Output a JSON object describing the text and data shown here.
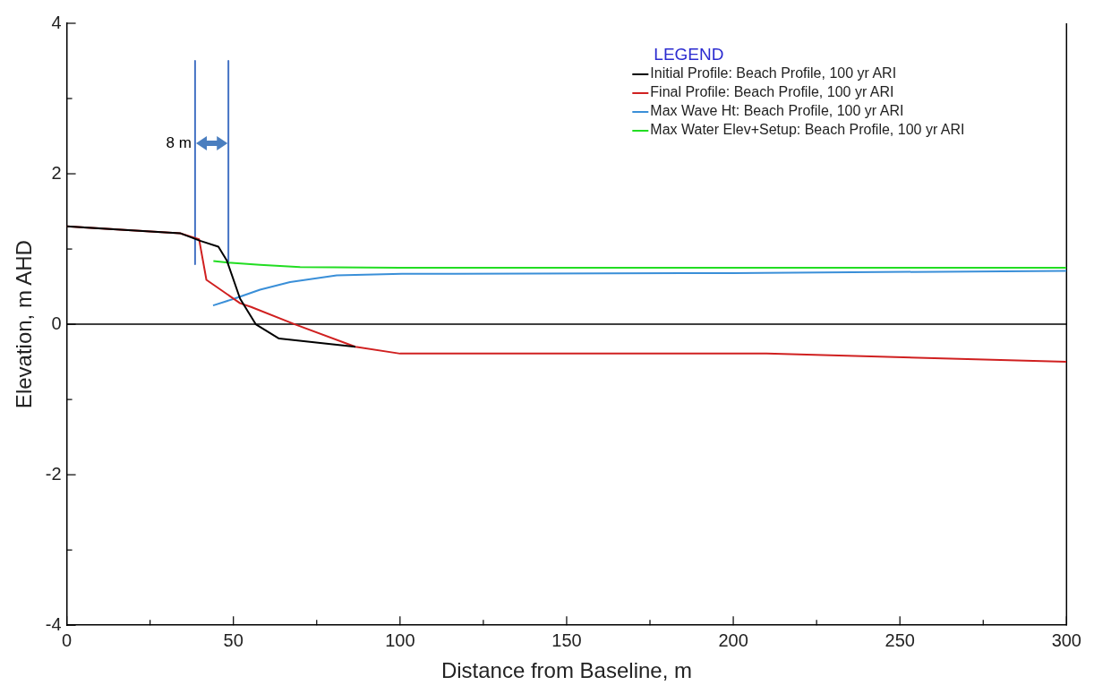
{
  "chart_data": {
    "type": "line",
    "xlabel": "Distance from Baseline, m",
    "ylabel": "Elevation, m AHD",
    "legend_title": "LEGEND",
    "legend": "top right",
    "grid": false,
    "marker": "none",
    "line_style": "solid",
    "xlim": [
      0,
      300
    ],
    "xticks": [
      0,
      {
        "value": 25,
        "label": null
      },
      50,
      {
        "value": 75,
        "label": null
      },
      100,
      {
        "value": 125,
        "label": null
      },
      150,
      {
        "value": 175,
        "label": null
      },
      200,
      {
        "value": 225,
        "label": null
      },
      250,
      {
        "value": 275,
        "label": null
      },
      300
    ],
    "ylim": [
      -4,
      4
    ],
    "yticks": [
      -4,
      {
        "value": -3,
        "label": null
      },
      -2,
      {
        "value": -1,
        "label": null
      },
      0,
      {
        "value": 1,
        "label": null
      },
      2,
      {
        "value": 3,
        "label": null
      },
      4
    ],
    "ref_lines": [
      {
        "axis": "y",
        "value": 0,
        "color": "#000000"
      }
    ],
    "annotations": [
      {
        "text": "8 m",
        "x": 38.5,
        "y": 2.4
      }
    ],
    "series": [
      {
        "name": "Initial Profile: Beach Profile, 100 yr ARI",
        "color": "#000000",
        "x": [
          0,
          34,
          40,
          45.5,
          48,
          52,
          56.7,
          63.7,
          86.6
        ],
        "values": [
          1.3,
          1.21,
          1.11,
          1.03,
          0.85,
          0.34,
          0,
          -0.19,
          -0.3
        ]
      },
      {
        "name": "Final Profile: Beach Profile, 100 yr ARI",
        "color": "#d02020",
        "x": [
          0,
          34,
          39.7,
          41.9,
          52,
          55.3,
          68.4,
          86.6,
          100,
          210,
          300
        ],
        "values": [
          1.3,
          1.21,
          1.13,
          0.59,
          0.28,
          0.23,
          0,
          -0.3,
          -0.39,
          -0.39,
          -0.5
        ]
      },
      {
        "name": "Max Wave Ht: Beach Profile, 100 yr ARI",
        "color": "#3a8fd8",
        "x": [
          43.9,
          50.3,
          58,
          67,
          81,
          100.6,
          200,
          300
        ],
        "values": [
          0.25,
          0.34,
          0.46,
          0.56,
          0.65,
          0.67,
          0.68,
          0.71
        ]
      },
      {
        "name": "Max Water Elev+Setup: Beach Profile, 100 yr ARI",
        "color": "#22dd22",
        "x": [
          44,
          48.4,
          58,
          70,
          100,
          300
        ],
        "values": [
          0.84,
          0.82,
          0.79,
          0.76,
          0.75,
          0.75
        ]
      },
      {
        "color": "#4472c4",
        "x": [
          38.5,
          38.5
        ],
        "values": [
          3.5,
          0.8
        ]
      },
      {
        "color": "#4472c4",
        "x": [
          48.5,
          48.5
        ],
        "values": [
          3.5,
          0.8
        ]
      }
    ]
  }
}
